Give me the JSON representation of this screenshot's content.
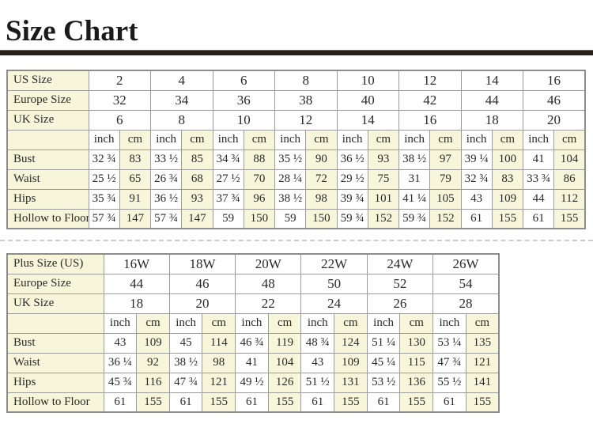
{
  "page": {
    "title": "Size Chart"
  },
  "colors": {
    "cream_cell": "#f8f6da",
    "cell_border": "#9c9c9c",
    "title_rule": "#2b1d18",
    "text": "#2a2a2a"
  },
  "tables": [
    {
      "name": "standard-sizes",
      "unit_headers": [
        "inch",
        "cm"
      ],
      "size_rows": [
        {
          "label": "US Size",
          "values": [
            "2",
            "4",
            "6",
            "8",
            "10",
            "12",
            "14",
            "16"
          ]
        },
        {
          "label": "Europe Size",
          "values": [
            "32",
            "34",
            "36",
            "38",
            "40",
            "42",
            "44",
            "46"
          ]
        },
        {
          "label": "UK Size",
          "values": [
            "6",
            "8",
            "10",
            "12",
            "14",
            "16",
            "18",
            "20"
          ]
        }
      ],
      "measure_rows": [
        {
          "label": "Bust",
          "values": [
            "32 ¾",
            "83",
            "33 ½",
            "85",
            "34 ¾",
            "88",
            "35 ½",
            "90",
            "36 ½",
            "93",
            "38 ½",
            "97",
            "39 ¼",
            "100",
            "41",
            "104"
          ]
        },
        {
          "label": "Waist",
          "values": [
            "25 ½",
            "65",
            "26 ¾",
            "68",
            "27 ½",
            "70",
            "28 ¼",
            "72",
            "29 ½",
            "75",
            "31",
            "79",
            "32 ¾",
            "83",
            "33 ¾",
            "86"
          ]
        },
        {
          "label": "Hips",
          "values": [
            "35 ¾",
            "91",
            "36 ½",
            "93",
            "37 ¾",
            "96",
            "38 ½",
            "98",
            "39 ¾",
            "101",
            "41 ¼",
            "105",
            "43",
            "109",
            "44",
            "112"
          ]
        },
        {
          "label": "Hollow to Floor",
          "values": [
            "57 ¾",
            "147",
            "57 ¾",
            "147",
            "59",
            "150",
            "59",
            "150",
            "59 ¾",
            "152",
            "59 ¾",
            "152",
            "61",
            "155",
            "61",
            "155"
          ]
        }
      ]
    },
    {
      "name": "plus-sizes",
      "unit_headers": [
        "inch",
        "cm"
      ],
      "size_rows": [
        {
          "label": "Plus Size (US)",
          "values": [
            "16W",
            "18W",
            "20W",
            "22W",
            "24W",
            "26W"
          ]
        },
        {
          "label": "Europe Size",
          "values": [
            "44",
            "46",
            "48",
            "50",
            "52",
            "54"
          ]
        },
        {
          "label": "UK Size",
          "values": [
            "18",
            "20",
            "22",
            "24",
            "26",
            "28"
          ]
        }
      ],
      "measure_rows": [
        {
          "label": "Bust",
          "values": [
            "43",
            "109",
            "45",
            "114",
            "46 ¾",
            "119",
            "48 ¾",
            "124",
            "51 ¼",
            "130",
            "53 ¼",
            "135"
          ]
        },
        {
          "label": "Waist",
          "values": [
            "36 ¼",
            "92",
            "38 ½",
            "98",
            "41",
            "104",
            "43",
            "109",
            "45 ¼",
            "115",
            "47 ¾",
            "121"
          ]
        },
        {
          "label": "Hips",
          "values": [
            "45 ¾",
            "116",
            "47 ¾",
            "121",
            "49 ½",
            "126",
            "51 ½",
            "131",
            "53 ½",
            "136",
            "55 ½",
            "141"
          ]
        },
        {
          "label": "Hollow to Floor",
          "values": [
            "61",
            "155",
            "61",
            "155",
            "61",
            "155",
            "61",
            "155",
            "61",
            "155",
            "61",
            "155"
          ]
        }
      ]
    }
  ]
}
